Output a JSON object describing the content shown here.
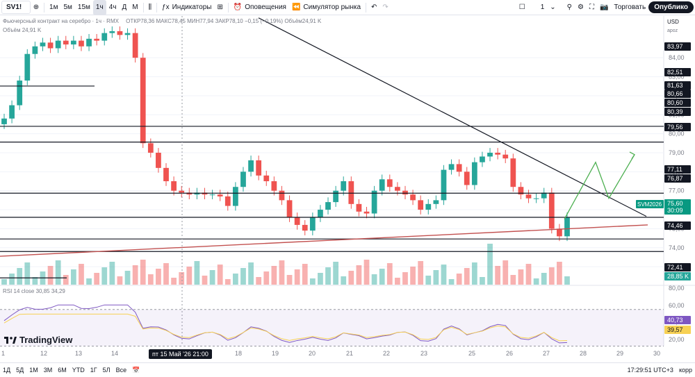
{
  "toolbar": {
    "symbol": "SV1!",
    "timeframes": [
      "1м",
      "5м",
      "15м",
      "1ч",
      "4ч",
      "Д",
      "М"
    ],
    "active_timeframe": "1ч",
    "indicators": "Индикаторы",
    "alerts": "Оповещения",
    "replay": "Симулятор рынка",
    "layout_count": "1",
    "trade": "Торговать",
    "publish": "Опублико"
  },
  "legend": {
    "title": "Фьючерсный контракт на серебро · 1ч · RMX",
    "ohlc": "ОТКР78,36 МАКС78,45 МИН77,94 ЗАКР78,10 −0,15 (−0,19%) Объём24,91 K",
    "volume": "Объём 24,91 K",
    "rsi": "RSI 14 close  30,85  34,29"
  },
  "price_axis": {
    "currency": "USD",
    "unit": "apoz"
  },
  "chart_data": [
    {
      "type": "candlestick",
      "title": "Фьючерсный контракт на серебро · 1ч",
      "x_ticks": [
        "1",
        "12",
        "13",
        "14",
        "15 Май '26",
        "18",
        "19",
        "20",
        "21",
        "22",
        "23",
        "25",
        "26",
        "27",
        "28",
        "29",
        "30"
      ],
      "crosshair_date": "пт 15 Май '26   21:00",
      "y_ticks": [
        "84,00",
        "83,00",
        "82,00",
        "81,00",
        "80,00",
        "79,00",
        "78,00",
        "77,00",
        "76,00",
        "75,00",
        "74,00",
        "73,00"
      ],
      "ylim": [
        72.2,
        86.2
      ],
      "price_labels": [
        "83,97",
        "82,51",
        "81,63",
        "80,66",
        "80,60",
        "80,39",
        "79,56",
        "77,11",
        "76,87",
        "75,60",
        "30:09",
        "74,46",
        "72,41",
        "28,85 K"
      ],
      "last_price_label": "SVM2026",
      "horizontal_levels": [
        82.51,
        80.39,
        79.56,
        76.87,
        75.6,
        74.46,
        73.8,
        72.41
      ],
      "approx_closes": [
        80.8,
        81.5,
        82.8,
        84.2,
        84.6,
        84.8,
        84.5,
        84.9,
        84.7,
        84.9,
        84.6,
        85.0,
        84.9,
        85.3,
        85.4,
        85.2,
        85.3,
        84.0,
        79.5,
        79.0,
        78.2,
        77.5,
        77.0,
        76.9,
        76.8,
        76.9,
        76.8,
        76.8,
        76.7,
        76.2,
        77.2,
        78.0,
        78.6,
        77.8,
        77.5,
        77.0,
        76.5,
        75.6,
        75.2,
        74.9,
        75.6,
        76.0,
        76.4,
        77.0,
        77.5,
        76.3,
        75.9,
        75.8,
        77.0,
        77.6,
        77.2,
        77.0,
        76.8,
        76.5,
        76.0,
        76.3,
        76.5,
        78.1,
        78.4,
        78.0,
        77.3,
        78.5,
        78.8,
        79.0,
        78.9,
        78.7,
        77.2,
        76.8,
        76.6,
        76.6,
        76.9,
        75.0,
        74.6,
        75.6
      ],
      "rsi": {
        "label": "RSI 14",
        "values": [
          30.85,
          34.29
        ],
        "levels": [
          70,
          30
        ],
        "y_ticks": [
          "80,00",
          "60,00",
          "40,00",
          "20,00"
        ],
        "labels": [
          "40,73",
          "39,57"
        ]
      }
    }
  ],
  "bottombar": {
    "ranges": [
      "1Д",
      "5Д",
      "1М",
      "3М",
      "6М",
      "YTD",
      "1Г",
      "5Л",
      "Все"
    ],
    "time": "17:29:51 UTC+3",
    "mode": "корр"
  },
  "logo": "TradingView",
  "colors": {
    "up": "#26a69a",
    "down": "#ef5350",
    "trend": "#131722",
    "support": "#c2504f",
    "projection": "#4caf50",
    "rsi": "#7e57c2"
  }
}
